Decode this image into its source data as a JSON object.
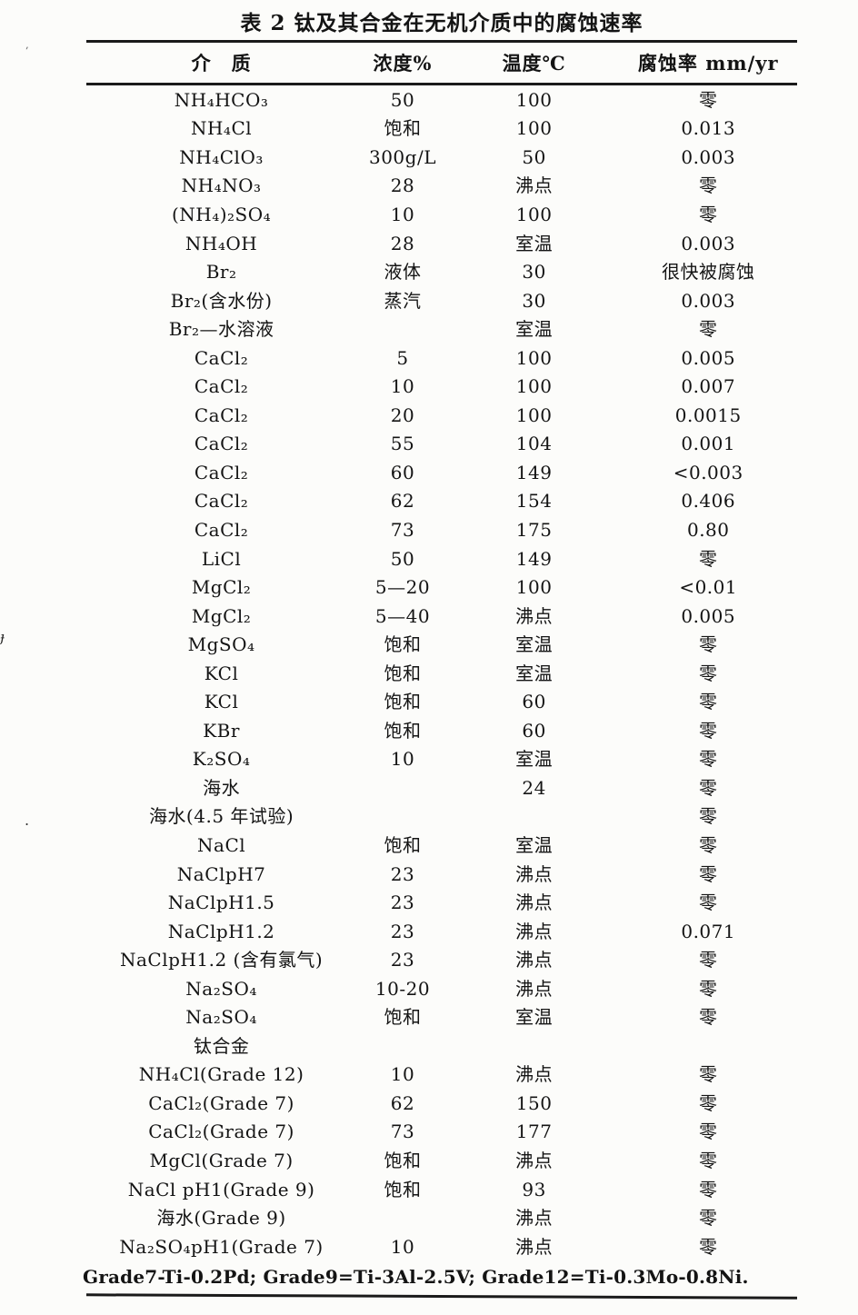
{
  "table": {
    "title": "表 2 钛及其合金在无机介质中的腐蚀速率",
    "columns": [
      "介　质",
      "浓度%",
      "温度℃",
      "腐蚀率 mm/yr"
    ],
    "rows": [
      [
        "NH₄HCO₃",
        "50",
        "100",
        "零"
      ],
      [
        "NH₄Cl",
        "饱和",
        "100",
        "0.013"
      ],
      [
        "NH₄ClO₃",
        "300g/L",
        "50",
        "0.003"
      ],
      [
        "NH₄NO₃",
        "28",
        "沸点",
        "零"
      ],
      [
        "(NH₄)₂SO₄",
        "10",
        "100",
        "零"
      ],
      [
        "NH₄OH",
        "28",
        "室温",
        "0.003"
      ],
      [
        "Br₂",
        "液体",
        "30",
        "很快被腐蚀"
      ],
      [
        "Br₂(含水份)",
        "蒸汽",
        "30",
        "0.003"
      ],
      [
        "Br₂—水溶液",
        "",
        "室温",
        "零"
      ],
      [
        "CaCl₂",
        "5",
        "100",
        "0.005"
      ],
      [
        "CaCl₂",
        "10",
        "100",
        "0.007"
      ],
      [
        "CaCl₂",
        "20",
        "100",
        "0.0015"
      ],
      [
        "CaCl₂",
        "55",
        "104",
        "0.001"
      ],
      [
        "CaCl₂",
        "60",
        "149",
        "<0.003"
      ],
      [
        "CaCl₂",
        "62",
        "154",
        "0.406"
      ],
      [
        "CaCl₂",
        "73",
        "175",
        "0.80"
      ],
      [
        "LiCl",
        "50",
        "149",
        "零"
      ],
      [
        "MgCl₂",
        "5—20",
        "100",
        "<0.01"
      ],
      [
        "MgCl₂",
        "5—40",
        "沸点",
        "0.005"
      ],
      [
        "MgSO₄",
        "饱和",
        "室温",
        "零"
      ],
      [
        "KCl",
        "饱和",
        "室温",
        "零"
      ],
      [
        "KCl",
        "饱和",
        "60",
        "零"
      ],
      [
        "KBr",
        "饱和",
        "60",
        "零"
      ],
      [
        "K₂SO₄",
        "10",
        "室温",
        "零"
      ],
      [
        "海水",
        "",
        "24",
        "零"
      ],
      [
        "海水(4.5 年试验)",
        "",
        "",
        "零"
      ],
      [
        "NaCl",
        "饱和",
        "室温",
        "零"
      ],
      [
        "NaClpH7",
        "23",
        "沸点",
        "零"
      ],
      [
        "NaClpH1.5",
        "23",
        "沸点",
        "零"
      ],
      [
        "NaClpH1.2",
        "23",
        "沸点",
        "0.071"
      ],
      [
        "NaClpH1.2 (含有氯气)",
        "23",
        "沸点",
        "零"
      ],
      [
        "Na₂SO₄",
        "10-20",
        "沸点",
        "零"
      ],
      [
        "Na₂SO₄",
        "饱和",
        "室温",
        "零"
      ],
      [
        "钛合金",
        "",
        "",
        ""
      ],
      [
        "NH₄Cl(Grade 12)",
        "10",
        "沸点",
        "零"
      ],
      [
        "CaCl₂(Grade 7)",
        "62",
        "150",
        "零"
      ],
      [
        "CaCl₂(Grade 7)",
        "73",
        "177",
        "零"
      ],
      [
        "MgCl(Grade 7)",
        "饱和",
        "沸点",
        "零"
      ],
      [
        "NaCl pH1(Grade 9)",
        "饱和",
        "93",
        "零"
      ],
      [
        "海水(Grade 9)",
        "",
        "沸点",
        "零"
      ],
      [
        "Na₂SO₄pH1(Grade 7)",
        "10",
        "沸点",
        "零"
      ]
    ],
    "footnote": "Grade7-Ti-0.2Pd; Grade9=Ti-3Al-2.5V; Grade12=Ti-0.3Mo-0.8Ni."
  }
}
